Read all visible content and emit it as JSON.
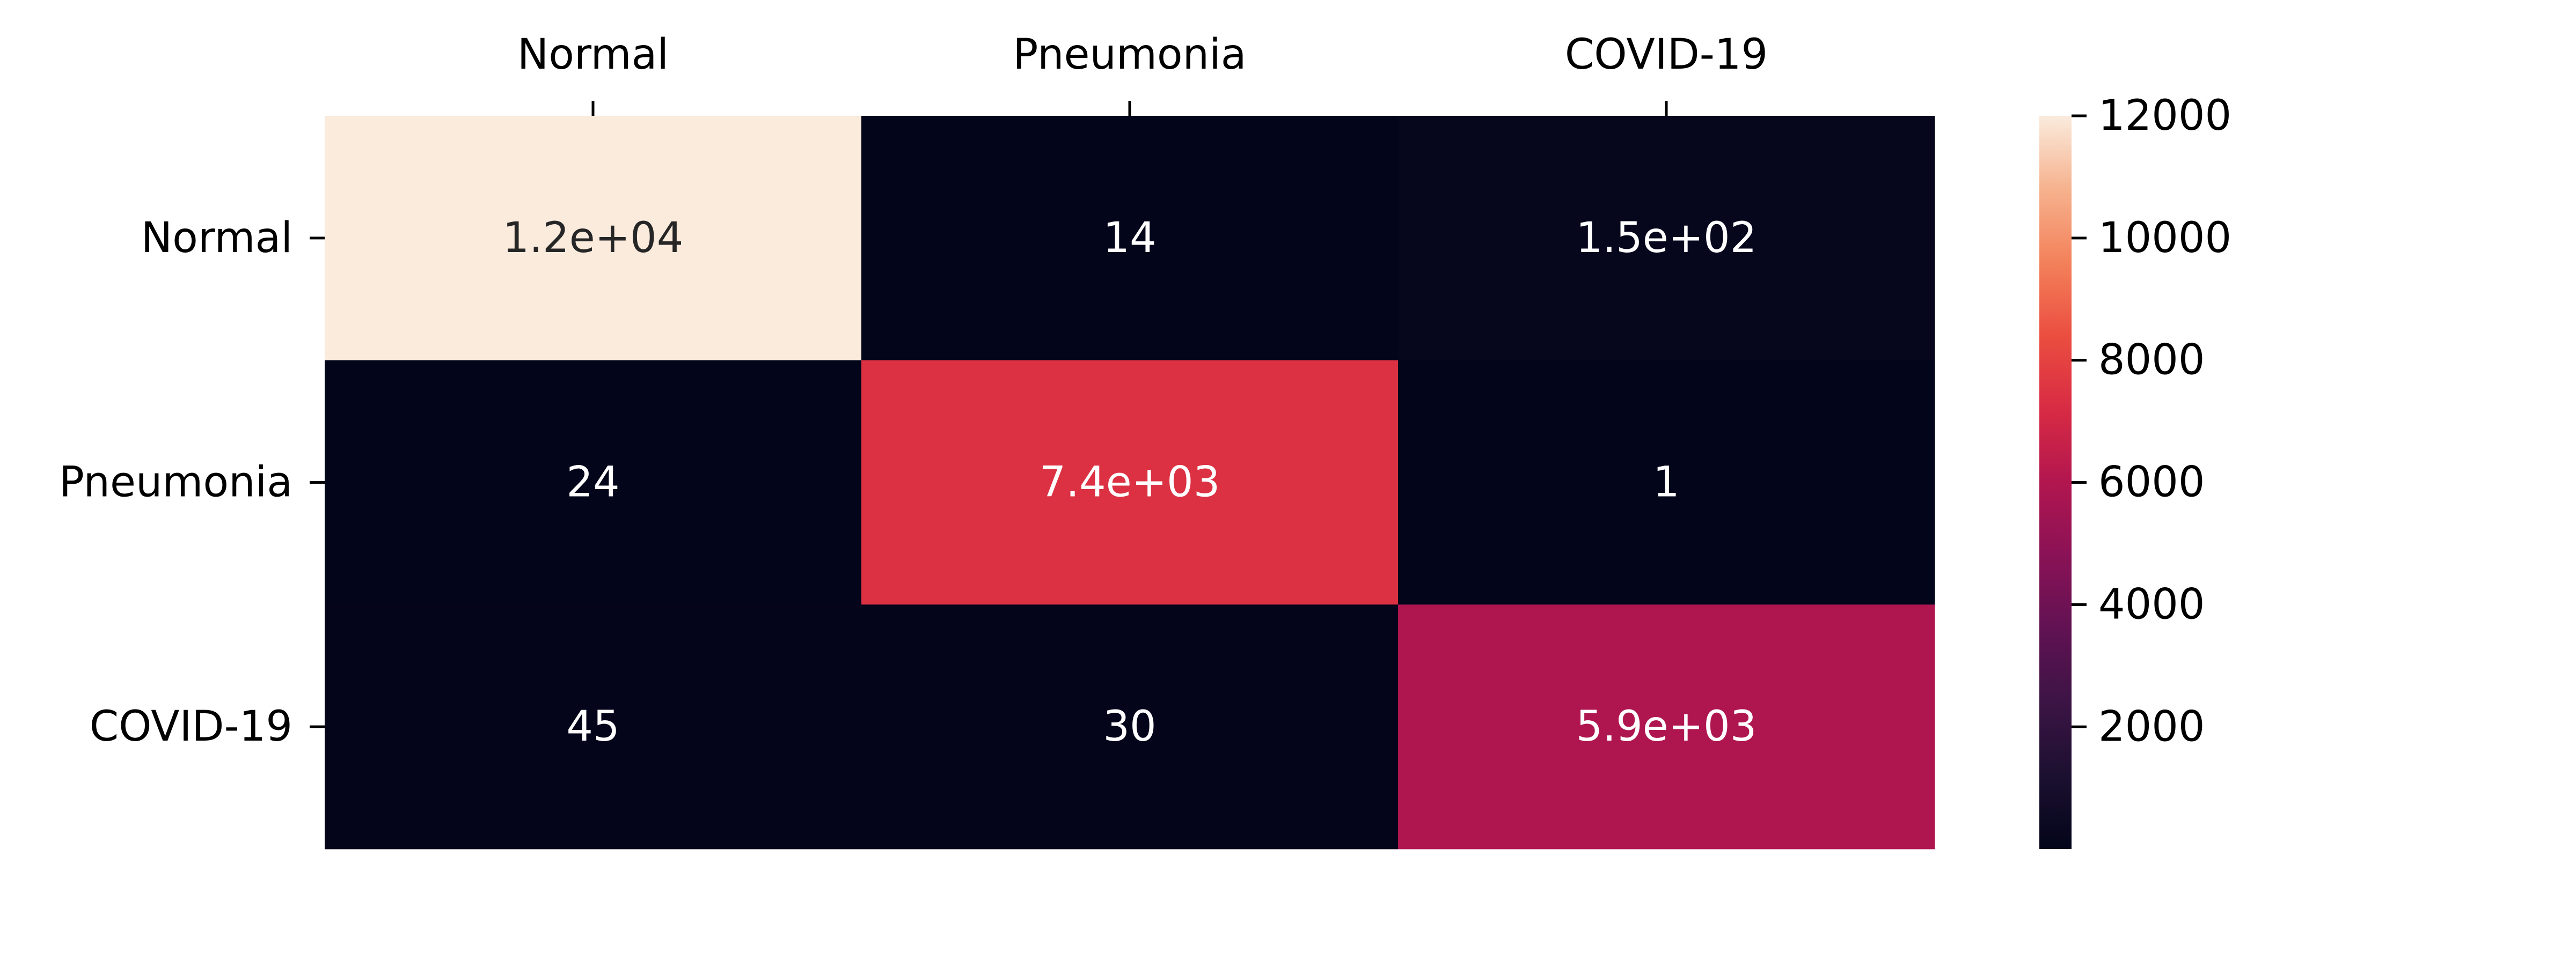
{
  "chart_data": {
    "type": "heatmap",
    "x_categories": [
      "Normal",
      "Pneumonia",
      "COVID-19"
    ],
    "y_categories": [
      "Normal",
      "Pneumonia",
      "COVID-19"
    ],
    "x_tick_position": "top",
    "values": [
      [
        12000,
        14,
        150
      ],
      [
        24,
        7400,
        1
      ],
      [
        45,
        30,
        5900
      ]
    ],
    "annotations": [
      [
        "1.2e+04",
        "14",
        "1.5e+02"
      ],
      [
        "24",
        "7.4e+03",
        "1"
      ],
      [
        "45",
        "30",
        "5.9e+03"
      ]
    ],
    "colorbar": {
      "ticks": [
        "2000",
        "4000",
        "6000",
        "8000",
        "10000",
        "12000"
      ],
      "tick_values": [
        2000,
        4000,
        6000,
        8000,
        10000,
        12000
      ],
      "vmin": 1,
      "vmax": 12000
    },
    "colormap": "rocket",
    "grid": false,
    "legend": "colorbar-right"
  }
}
